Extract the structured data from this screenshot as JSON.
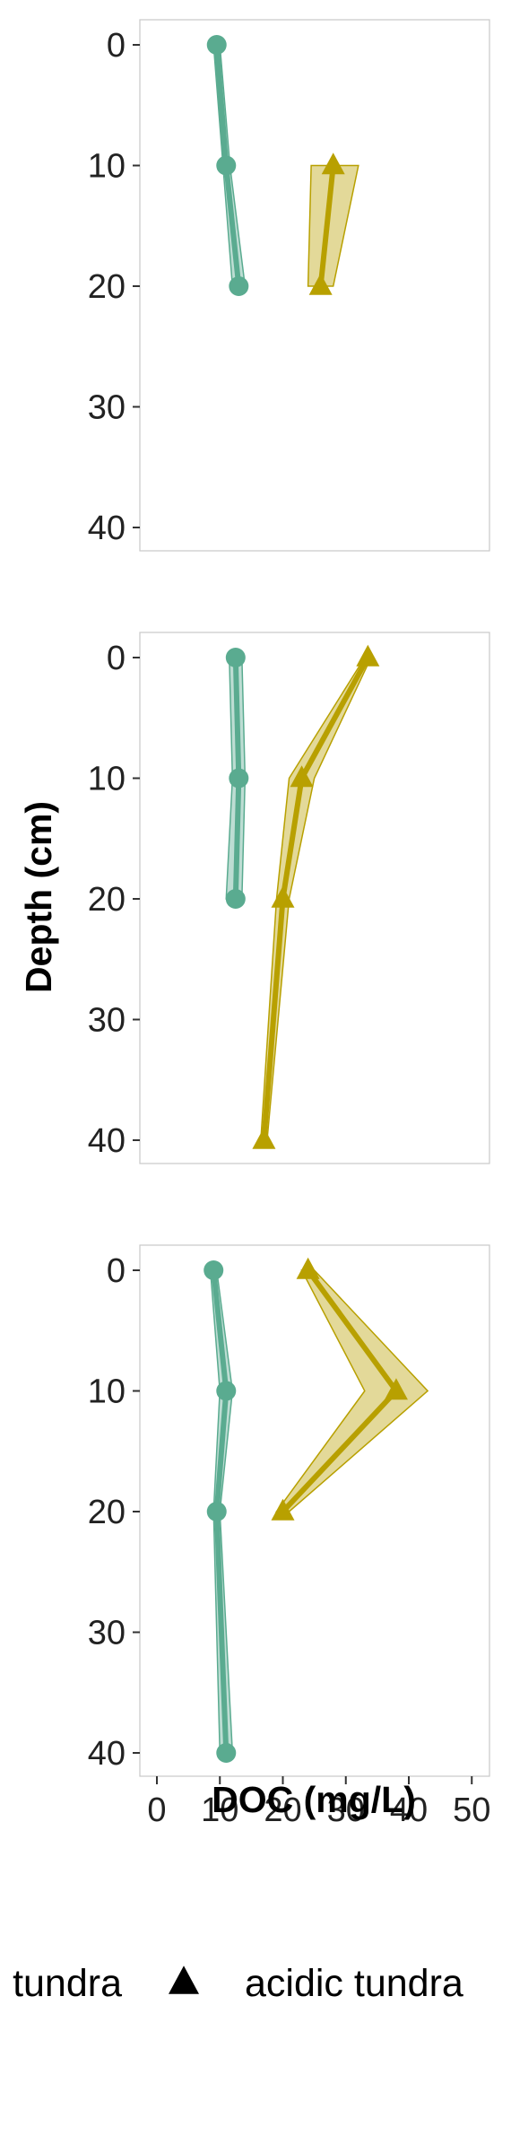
{
  "chart_data": {
    "type": "line",
    "ylabel": "Depth (cm)",
    "xlabel": "DOC (mg/L)",
    "xlim": [
      -2,
      52
    ],
    "ylim": [
      0,
      42
    ],
    "x_ticks": [
      "0",
      "10",
      "20",
      "30",
      "40",
      "50"
    ],
    "y_ticks": [
      "0",
      "10",
      "20",
      "30",
      "40"
    ],
    "y_reversed": true,
    "grid": false,
    "legend_position": "bottom",
    "colors": {
      "non_acidic": "#5aab90",
      "acidic": "#b8a000"
    },
    "legend": [
      {
        "label": "tundra",
        "marker": "circle"
      },
      {
        "label": "acidic tundra",
        "marker": "triangle"
      }
    ],
    "panels": [
      {
        "series": [
          {
            "type": "non_acidic",
            "points": [
              {
                "depth": 0,
                "doc": 9.5,
                "lo": 9.0,
                "hi": 10.0
              },
              {
                "depth": 10,
                "doc": 11.0,
                "lo": 10.5,
                "hi": 11.6
              },
              {
                "depth": 20,
                "doc": 13.0,
                "lo": 12.0,
                "hi": 14.0
              }
            ]
          },
          {
            "type": "acidic",
            "points": [
              {
                "depth": 10,
                "doc": 28.0,
                "lo": 24.5,
                "hi": 32.0
              },
              {
                "depth": 20,
                "doc": 26.0,
                "lo": 24.0,
                "hi": 28.0
              }
            ]
          }
        ]
      },
      {
        "series": [
          {
            "type": "non_acidic",
            "points": [
              {
                "depth": 0,
                "doc": 12.5,
                "lo": 11.5,
                "hi": 13.5
              },
              {
                "depth": 10,
                "doc": 13.0,
                "lo": 12.0,
                "hi": 14.0
              },
              {
                "depth": 20,
                "doc": 12.5,
                "lo": 11.0,
                "hi": 13.5
              }
            ]
          },
          {
            "type": "acidic",
            "points": [
              {
                "depth": 0,
                "doc": 33.5,
                "lo": 33.0,
                "hi": 34.0
              },
              {
                "depth": 10,
                "doc": 23.0,
                "lo": 21.0,
                "hi": 25.0
              },
              {
                "depth": 20,
                "doc": 20.0,
                "lo": 19.0,
                "hi": 21.0
              },
              {
                "depth": 40,
                "doc": 17.0,
                "lo": 16.5,
                "hi": 17.5
              }
            ]
          }
        ]
      },
      {
        "series": [
          {
            "type": "non_acidic",
            "points": [
              {
                "depth": 0,
                "doc": 9.0,
                "lo": 8.5,
                "hi": 9.5
              },
              {
                "depth": 10,
                "doc": 11.0,
                "lo": 10.0,
                "hi": 12.0
              },
              {
                "depth": 20,
                "doc": 9.5,
                "lo": 9.0,
                "hi": 10.0
              },
              {
                "depth": 40,
                "doc": 11.0,
                "lo": 10.0,
                "hi": 12.0
              }
            ]
          },
          {
            "type": "acidic",
            "points": [
              {
                "depth": 0,
                "doc": 24.0,
                "lo": 23.0,
                "hi": 25.0
              },
              {
                "depth": 10,
                "doc": 38.0,
                "lo": 33.0,
                "hi": 43.0
              },
              {
                "depth": 20,
                "doc": 20.0,
                "lo": 19.0,
                "hi": 21.0
              }
            ]
          }
        ]
      }
    ]
  }
}
